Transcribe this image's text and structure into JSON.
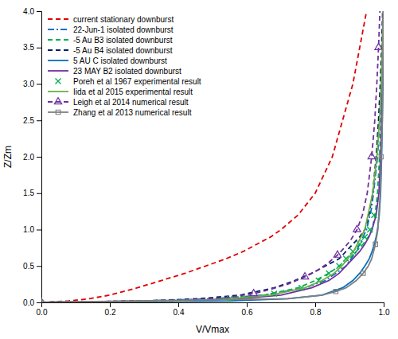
{
  "chart_data": {
    "type": "line",
    "xlabel": "V/Vmax",
    "ylabel": "Z/Zm",
    "xlim": [
      0,
      1.0
    ],
    "ylim": [
      0,
      4.0
    ],
    "xticks": [
      {
        "value": 0,
        "label": "0.0"
      },
      0.2,
      0.4,
      0.6,
      0.8,
      {
        "value": 1.0,
        "label": "1.0"
      }
    ],
    "yticks": [
      {
        "value": 0,
        "label": "0.0"
      },
      0.5,
      {
        "value": 1.0,
        "label": "1.0"
      },
      1.5,
      {
        "value": 2.0,
        "label": "2.0"
      },
      2.5,
      {
        "value": 3.0,
        "label": "3.0"
      },
      3.5,
      {
        "value": 4.0,
        "label": "4.0"
      }
    ],
    "grid": false,
    "legend": "upper left",
    "series": [
      {
        "name": "current stationary downburst",
        "type": "line",
        "color": "#e00000",
        "line_style": "dashed",
        "x": [
          0.0,
          0.08,
          0.14,
          0.2,
          0.28,
          0.35,
          0.42,
          0.48,
          0.54,
          0.59,
          0.63,
          0.67,
          0.7,
          0.75,
          0.8,
          0.85,
          0.88,
          0.91,
          0.93,
          0.95
        ],
        "values": [
          0.0,
          0.02,
          0.05,
          0.1,
          0.2,
          0.3,
          0.4,
          0.5,
          0.6,
          0.7,
          0.8,
          0.9,
          1.0,
          1.2,
          1.5,
          2.0,
          2.5,
          3.0,
          3.5,
          4.0
        ]
      },
      {
        "name": "22-Jun-1 isolated downburst",
        "type": "line",
        "color": "#0070c0",
        "line_style": "dashdot",
        "x": [
          0.0,
          0.3,
          0.5,
          0.65,
          0.77,
          0.83,
          0.89,
          0.92,
          0.95,
          0.965,
          0.975,
          0.982,
          0.988,
          0.993,
          0.996,
          0.998
        ],
        "values": [
          0.0,
          0.02,
          0.05,
          0.1,
          0.2,
          0.3,
          0.5,
          0.7,
          1.0,
          1.3,
          1.7,
          2.0,
          2.5,
          3.0,
          3.5,
          4.0
        ]
      },
      {
        "name": "-5 Au B3 isolated downburst",
        "type": "line",
        "color": "#00b050",
        "line_style": "dashed",
        "x": [
          0.0,
          0.35,
          0.52,
          0.65,
          0.75,
          0.8,
          0.84,
          0.87,
          0.9,
          0.92,
          0.94,
          0.955,
          0.966,
          0.975,
          0.982,
          0.988,
          0.992,
          0.995,
          0.997,
          0.999
        ],
        "values": [
          0.0,
          0.02,
          0.05,
          0.1,
          0.2,
          0.3,
          0.4,
          0.5,
          0.6,
          0.7,
          0.8,
          0.9,
          1.0,
          1.2,
          1.5,
          2.0,
          2.5,
          3.0,
          3.5,
          4.0
        ]
      },
      {
        "name": "-5 Au B4 isolated downburst",
        "type": "line",
        "color": "#002060",
        "line_style": "dashed",
        "x": [
          0.0,
          0.3,
          0.46,
          0.58,
          0.68,
          0.74,
          0.79,
          0.83,
          0.87,
          0.89,
          0.91,
          0.93,
          0.945,
          0.957,
          0.968,
          0.978,
          0.985,
          0.99,
          0.994,
          0.997
        ],
        "values": [
          0.0,
          0.02,
          0.05,
          0.1,
          0.2,
          0.3,
          0.4,
          0.5,
          0.6,
          0.7,
          0.8,
          0.9,
          1.0,
          1.2,
          1.5,
          2.0,
          2.5,
          3.0,
          3.5,
          4.0
        ]
      },
      {
        "name": "5 AU C isolated downburst",
        "type": "line",
        "color": "#0070c0",
        "line_style": "solid",
        "x": [
          0.0,
          0.55,
          0.72,
          0.82,
          0.88,
          0.91,
          0.93,
          0.945,
          0.958,
          0.966,
          0.973,
          0.978,
          0.982,
          0.987,
          0.991,
          0.994,
          0.996,
          0.998,
          0.999,
          1.0
        ],
        "values": [
          0.0,
          0.02,
          0.05,
          0.1,
          0.2,
          0.3,
          0.4,
          0.5,
          0.6,
          0.7,
          0.8,
          0.9,
          1.0,
          1.2,
          1.5,
          2.0,
          2.5,
          3.0,
          3.5,
          4.0
        ]
      },
      {
        "name": "23 MAY B2 isolated downburst",
        "type": "line",
        "color": "#7030a0",
        "line_style": "solid",
        "x": [
          0.0,
          0.4,
          0.58,
          0.7,
          0.79,
          0.84,
          0.87,
          0.89,
          0.91,
          0.93,
          0.945,
          0.957,
          0.966,
          0.978,
          0.986,
          0.991,
          0.994,
          0.996,
          0.998,
          0.999
        ],
        "values": [
          0.0,
          0.02,
          0.05,
          0.1,
          0.2,
          0.3,
          0.4,
          0.5,
          0.6,
          0.7,
          0.8,
          0.9,
          1.0,
          1.2,
          1.5,
          2.0,
          2.5,
          3.0,
          3.5,
          4.0
        ]
      },
      {
        "name": "Poreh et al 1967 experimental result",
        "type": "scatter",
        "color": "#00b050",
        "marker": "x",
        "x": [
          0.55,
          0.68,
          0.76,
          0.81,
          0.84,
          0.87,
          0.89,
          0.91,
          0.93,
          0.945,
          0.96,
          0.972
        ],
        "values": [
          0.05,
          0.12,
          0.2,
          0.3,
          0.4,
          0.5,
          0.6,
          0.7,
          0.8,
          0.9,
          1.0,
          1.2
        ]
      },
      {
        "name": "Iida et al 2015 experimental result",
        "type": "line",
        "color": "#70ad47",
        "line_style": "solid",
        "x": [
          0.0,
          0.4,
          0.55,
          0.67,
          0.77,
          0.82,
          0.855,
          0.878,
          0.912,
          0.945,
          0.968,
          0.98,
          0.988,
          0.993,
          0.996,
          0.999
        ],
        "values": [
          0.0,
          0.02,
          0.05,
          0.1,
          0.2,
          0.3,
          0.4,
          0.5,
          0.7,
          1.0,
          1.5,
          2.0,
          2.5,
          3.0,
          3.5,
          4.0
        ]
      },
      {
        "name": "Leigh et al 2014 numerical result",
        "type": "line",
        "color": "#7030a0",
        "line_style": "dashed",
        "marker": "triangle",
        "x": [
          0.0,
          0.42,
          0.55,
          0.62,
          0.67,
          0.72,
          0.77,
          0.81,
          0.84,
          0.865,
          0.885,
          0.903,
          0.922,
          0.938,
          0.952,
          0.965,
          0.974,
          0.98,
          0.985,
          0.989
        ],
        "values": [
          0.0,
          0.03,
          0.07,
          0.12,
          0.18,
          0.25,
          0.35,
          0.45,
          0.55,
          0.65,
          0.75,
          0.85,
          1.0,
          1.2,
          1.5,
          2.0,
          2.5,
          3.0,
          3.5,
          4.0
        ]
      },
      {
        "name": "Zhang et al 2013 numerical result",
        "type": "line",
        "color": "#808080",
        "line_style": "solid",
        "marker": "square",
        "x": [
          0.0,
          0.72,
          0.82,
          0.86,
          0.89,
          0.92,
          0.94,
          0.955,
          0.965,
          0.976,
          0.983,
          0.99,
          0.993,
          0.996,
          0.997,
          0.998,
          0.999
        ],
        "values": [
          0.0,
          0.05,
          0.1,
          0.15,
          0.2,
          0.3,
          0.4,
          0.5,
          0.6,
          0.8,
          1.0,
          1.5,
          2.0,
          2.5,
          3.0,
          3.5,
          4.0
        ]
      }
    ]
  }
}
